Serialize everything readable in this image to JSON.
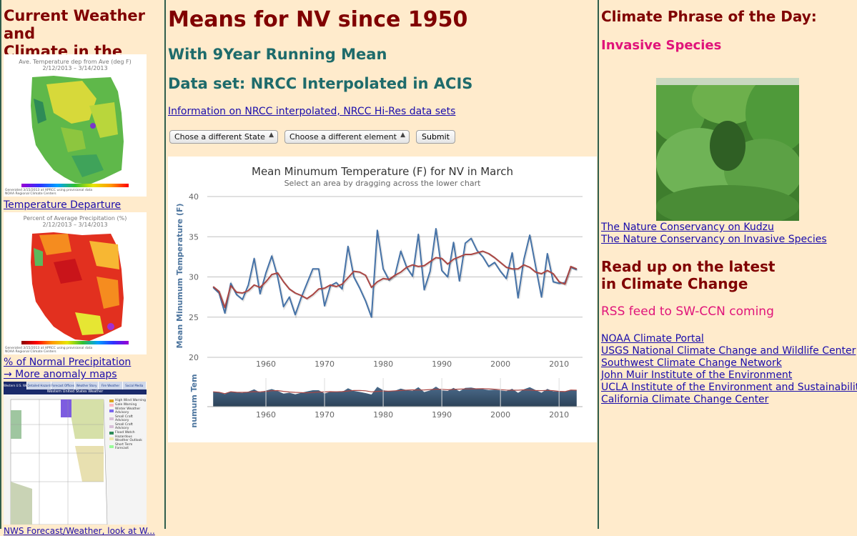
{
  "left": {
    "heading_line1": "Current Weather and",
    "heading_line2": "Climate in the West",
    "map1": {
      "title": "Ave. Temperature dep from Ave (deg F)",
      "dates": "2/12/2013 – 3/14/2013",
      "footer": "Generated 3/15/2013 at HPRCC using provisional data",
      "footer2": "NOAA Regional Climate Centers"
    },
    "link_temp": "Temperature Departure",
    "map2": {
      "title": "Percent of Average Precipitation (%)",
      "dates": "2/12/2013 – 3/14/2013",
      "footer": "Generated 3/15/2013 at HPRCC using provisional data",
      "footer2": "NOAA Regional Climate Centers"
    },
    "link_precip": "% of Normal Precipitation",
    "link_more": "→ More anomaly maps",
    "map3": {
      "tabs": [
        "Western U.S. Weather",
        "Detailed Hazards",
        "Forecast Offices",
        "Weather Story",
        "Fire Weather",
        "Social Media"
      ],
      "title": "Western United States Weather",
      "legend": [
        "High Wind Warning",
        "Gale Warning",
        "Winter Weather Advisory",
        "Small Craft Advisory",
        "Small Craft Advisory",
        "Flood Watch",
        "Hazardous Weather Outlook",
        "Short Term Forecast"
      ]
    },
    "link_nws_partial": "NWS Forecast/Weather, look at W..."
  },
  "mid": {
    "title": "Means for NV since 1950",
    "subtitle1": "With 9Year Running Mean",
    "subtitle2": "Data set: NRCC Interpolated in ACIS",
    "info_link": "Information on NRCC interpolated, NRCC Hi-Res data sets",
    "state_select": "Chose a different State",
    "element_select": "Choose a different element",
    "submit": "Submit"
  },
  "right": {
    "heading": "Climate Phrase of the Day:",
    "phrase": "Invasive Species",
    "link1": "The Nature Conservancy on Kudzu",
    "link2": "The Nature Conservancy on Invasive Species",
    "heading2_line1": "Read up on the latest",
    "heading2_line2": "in Climate Change",
    "rss": "RSS feed to SW-CCN coming",
    "links": [
      "NOAA Climate Portal",
      "USGS National Climate Change and Wildlife Center",
      "Southwest Climate Change Network",
      "John Muir Institute of the Environment",
      "UCLA Institute of the Environment and Sustainability",
      "California Climate Change Center"
    ]
  },
  "chart_data": {
    "type": "line",
    "title": "Mean Minumum Temperature (F) for NV in March",
    "subtitle": "Select an area by dragging across the lower chart",
    "ylabel": "Mean Minumum Temperature (F)",
    "navigator_label": "numum Tem",
    "ylim": [
      20,
      40
    ],
    "yticks": [
      20,
      25,
      30,
      35,
      40
    ],
    "xlim": [
      1950,
      2014
    ],
    "xticks": [
      1960,
      1970,
      1980,
      1990,
      2000,
      2010
    ],
    "grid": true,
    "x": [
      1951,
      1952,
      1953,
      1954,
      1955,
      1956,
      1957,
      1958,
      1959,
      1960,
      1961,
      1962,
      1963,
      1964,
      1965,
      1966,
      1967,
      1968,
      1969,
      1970,
      1971,
      1972,
      1973,
      1974,
      1975,
      1976,
      1977,
      1978,
      1979,
      1980,
      1981,
      1982,
      1983,
      1984,
      1985,
      1986,
      1987,
      1988,
      1989,
      1990,
      1991,
      1992,
      1993,
      1994,
      1995,
      1996,
      1997,
      1998,
      1999,
      2000,
      2001,
      2002,
      2003,
      2004,
      2005,
      2006,
      2007,
      2008,
      2009,
      2010,
      2011,
      2012,
      2013
    ],
    "series": [
      {
        "color": "#4572a7",
        "values": [
          28.7,
          28.0,
          25.5,
          29.2,
          27.8,
          27.2,
          29.0,
          32.3,
          27.9,
          30.5,
          32.6,
          30.0,
          26.3,
          27.5,
          25.3,
          27.4,
          29.2,
          31.0,
          31.0,
          26.4,
          28.9,
          29.3,
          28.5,
          33.8,
          30.0,
          28.6,
          27.0,
          25.0,
          35.8,
          31.0,
          29.6,
          30.2,
          33.2,
          31.2,
          30.1,
          35.3,
          28.4,
          30.7,
          36.0,
          30.8,
          30.0,
          34.3,
          29.5,
          34.2,
          34.8,
          33.3,
          32.5,
          31.3,
          31.8,
          30.7,
          29.8,
          33.0,
          27.4,
          32.2,
          35.2,
          31.3,
          27.5,
          32.9,
          29.4,
          29.2,
          29.3,
          31.2,
          30.9
        ]
      },
      {
        "color": "#aa4643",
        "values": [
          28.8,
          28.2,
          26.2,
          28.9,
          28.1,
          28.0,
          28.3,
          29.0,
          28.7,
          29.4,
          30.3,
          30.5,
          29.4,
          28.5,
          28.0,
          27.7,
          27.3,
          27.8,
          28.5,
          28.6,
          29.0,
          28.8,
          29.1,
          29.9,
          30.7,
          30.6,
          30.2,
          28.7,
          29.4,
          29.8,
          29.7,
          30.2,
          30.6,
          31.2,
          31.5,
          31.3,
          31.4,
          31.9,
          32.4,
          32.3,
          31.6,
          32.2,
          32.5,
          32.8,
          32.8,
          33.0,
          33.2,
          32.9,
          32.4,
          31.8,
          31.2,
          31.0,
          31.0,
          31.5,
          31.2,
          30.6,
          30.4,
          30.8,
          30.4,
          29.4,
          29.1,
          31.3,
          31.0
        ]
      }
    ]
  }
}
